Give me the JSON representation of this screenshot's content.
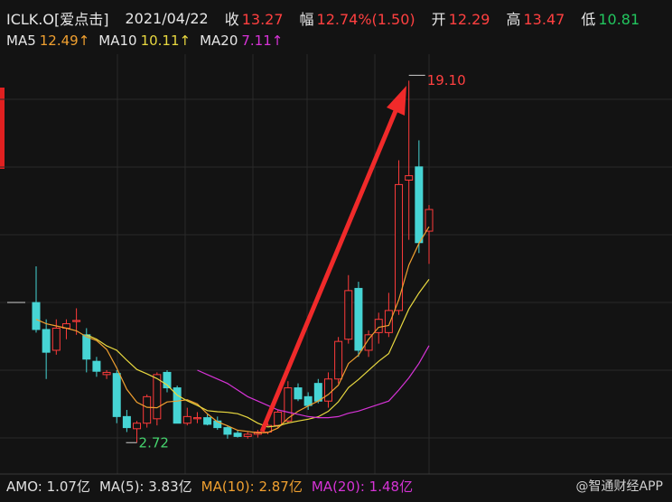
{
  "header": {
    "symbol": "ICLK.O[爱点击]",
    "date": "2021/04/22",
    "fields": [
      {
        "label": "收",
        "value": "13.27",
        "color": "#ff4040"
      },
      {
        "label": "幅",
        "value": "12.74%(1.50)",
        "color": "#ff4040"
      },
      {
        "label": "开",
        "value": "12.29",
        "color": "#ff4040"
      },
      {
        "label": "高",
        "value": "13.47",
        "color": "#ff4040"
      },
      {
        "label": "低",
        "value": "10.81",
        "color": "#22c55e"
      }
    ]
  },
  "chart_data": {
    "type": "candlestick",
    "ylim": [
      1.3,
      20.3
    ],
    "open": [
      9.06,
      7.84,
      6.9,
      7.9,
      8.2,
      7.6,
      6.4,
      5.8,
      5.85,
      3.9,
      3.35,
      3.6,
      3.8,
      5.9,
      5.2,
      3.6,
      3.8,
      3.85,
      3.7,
      3.4,
      3.15,
      3.0,
      3.1,
      3.2,
      3.5,
      3.7,
      5.2,
      4.8,
      5.4,
      4.6,
      5.6,
      7.4,
      9.7,
      6.9,
      7.7,
      7.7,
      8.7,
      14.6,
      15.2,
      12.29
    ],
    "high": [
      10.7,
      8.3,
      8.3,
      8.3,
      8.8,
      7.9,
      6.6,
      6.0,
      6.0,
      4.2,
      3.7,
      4.9,
      5.9,
      6.0,
      5.3,
      4.3,
      4.1,
      4.0,
      3.9,
      3.5,
      3.3,
      3.2,
      3.3,
      3.6,
      4.2,
      5.5,
      5.4,
      5.0,
      5.6,
      5.9,
      7.5,
      10.3,
      10.0,
      7.8,
      8.6,
      9.5,
      15.5,
      19.1,
      16.4,
      13.47
    ],
    "low": [
      7.7,
      5.6,
      6.7,
      7.4,
      7.6,
      5.9,
      5.7,
      5.6,
      3.6,
      3.2,
      2.72,
      3.4,
      3.5,
      5.0,
      3.6,
      3.5,
      3.6,
      3.5,
      3.3,
      2.9,
      2.95,
      2.9,
      2.95,
      3.1,
      3.4,
      3.6,
      4.6,
      4.2,
      4.5,
      4.3,
      5.4,
      7.2,
      6.6,
      6.6,
      7.2,
      7.5,
      8.5,
      11.9,
      11.3,
      10.81
    ],
    "close": [
      7.84,
      6.81,
      7.9,
      8.1,
      8.25,
      6.5,
      5.95,
      5.9,
      3.9,
      3.4,
      3.6,
      4.8,
      5.8,
      5.2,
      3.6,
      3.9,
      3.85,
      3.55,
      3.4,
      3.1,
      3.0,
      3.1,
      3.2,
      3.5,
      4.1,
      5.2,
      4.7,
      4.4,
      4.6,
      5.6,
      7.3,
      9.6,
      6.9,
      7.6,
      8.3,
      8.7,
      14.4,
      14.8,
      11.77,
      13.27
    ],
    "up_color": "#ff3b3b",
    "down_color": "#46d4d4",
    "series": [
      {
        "name": "MA5",
        "legend_value": "12.49↑",
        "color": "#f0a030",
        "values": [
          8.3,
          8.1,
          8.0,
          7.9,
          7.78,
          7.51,
          7.34,
          6.94,
          6.1,
          5.13,
          4.55,
          4.32,
          4.3,
          4.56,
          4.6,
          4.66,
          4.47,
          4.02,
          3.66,
          3.48,
          3.28,
          3.23,
          3.16,
          3.18,
          3.38,
          3.82,
          4.14,
          4.38,
          4.6,
          4.9,
          5.32,
          6.3,
          6.68,
          7.4,
          7.94,
          8.02,
          9.18,
          10.76,
          11.73,
          12.49
        ]
      },
      {
        "name": "MA10",
        "legend_value": "10.11↑",
        "color": "#e8d840",
        "values": [
          null,
          null,
          null,
          null,
          null,
          7.6,
          7.4,
          7.1,
          6.9,
          6.45,
          6.03,
          5.83,
          5.62,
          5.33,
          4.87,
          4.61,
          4.4,
          4.17,
          4.12,
          4.09,
          4.03,
          3.86,
          3.6,
          3.43,
          3.48,
          3.61,
          3.7,
          3.78,
          3.89,
          4.14,
          4.57,
          5.21,
          5.58,
          5.99,
          6.4,
          6.75,
          7.75,
          8.77,
          9.49,
          10.11
        ]
      },
      {
        "name": "MA20",
        "legend_value": "7.11↑",
        "color": "#d633d6",
        "values": [
          null,
          null,
          null,
          null,
          null,
          null,
          null,
          null,
          null,
          null,
          null,
          null,
          null,
          null,
          null,
          null,
          6.0,
          5.8,
          5.6,
          5.4,
          5.1,
          4.8,
          4.6,
          4.4,
          4.2,
          4.1,
          4.0,
          3.9,
          3.85,
          3.85,
          3.9,
          4.05,
          4.15,
          4.3,
          4.45,
          4.6,
          5.1,
          5.65,
          6.3,
          7.11
        ]
      }
    ],
    "max_label": {
      "value": 19.1,
      "label": "19.10"
    },
    "min_label": {
      "value": 2.72,
      "label": "2.72"
    }
  },
  "volume_legend": [
    {
      "text": "AMO: 1.07亿",
      "color": "#e0e0e0"
    },
    {
      "text": "MA(5): 3.83亿",
      "color": "#e0e0e0"
    },
    {
      "text": "MA(10): 2.87亿",
      "color": "#f0a030"
    },
    {
      "text": "MA(20): 1.48亿",
      "color": "#d633d6"
    }
  ],
  "watermark": "@智通财经APP"
}
